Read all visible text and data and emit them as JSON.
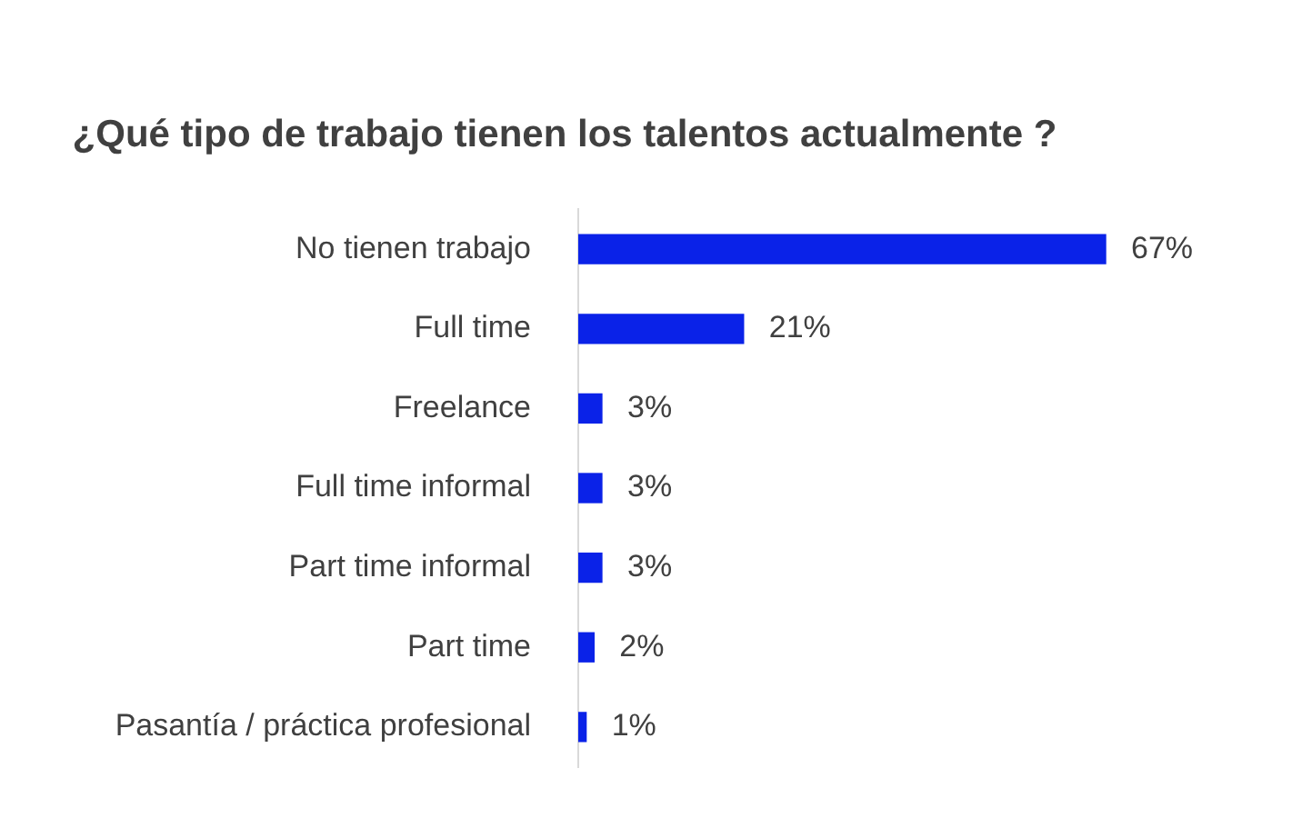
{
  "chart_data": {
    "type": "bar",
    "orientation": "horizontal",
    "title": "¿Qué tipo de trabajo tienen los talentos actualmente ?",
    "categories": [
      "No tienen trabajo",
      "Full time",
      "Freelance",
      "Full time informal",
      "Part time informal",
      "Part time",
      "Pasantía / práctica profesional"
    ],
    "values": [
      67,
      21,
      3,
      3,
      3,
      2,
      1
    ],
    "value_labels": [
      "67%",
      "21%",
      "3%",
      "3%",
      "3%",
      "2%",
      "1%"
    ],
    "color": "#0a22e8",
    "legend": false,
    "tick_labels": "y"
  }
}
